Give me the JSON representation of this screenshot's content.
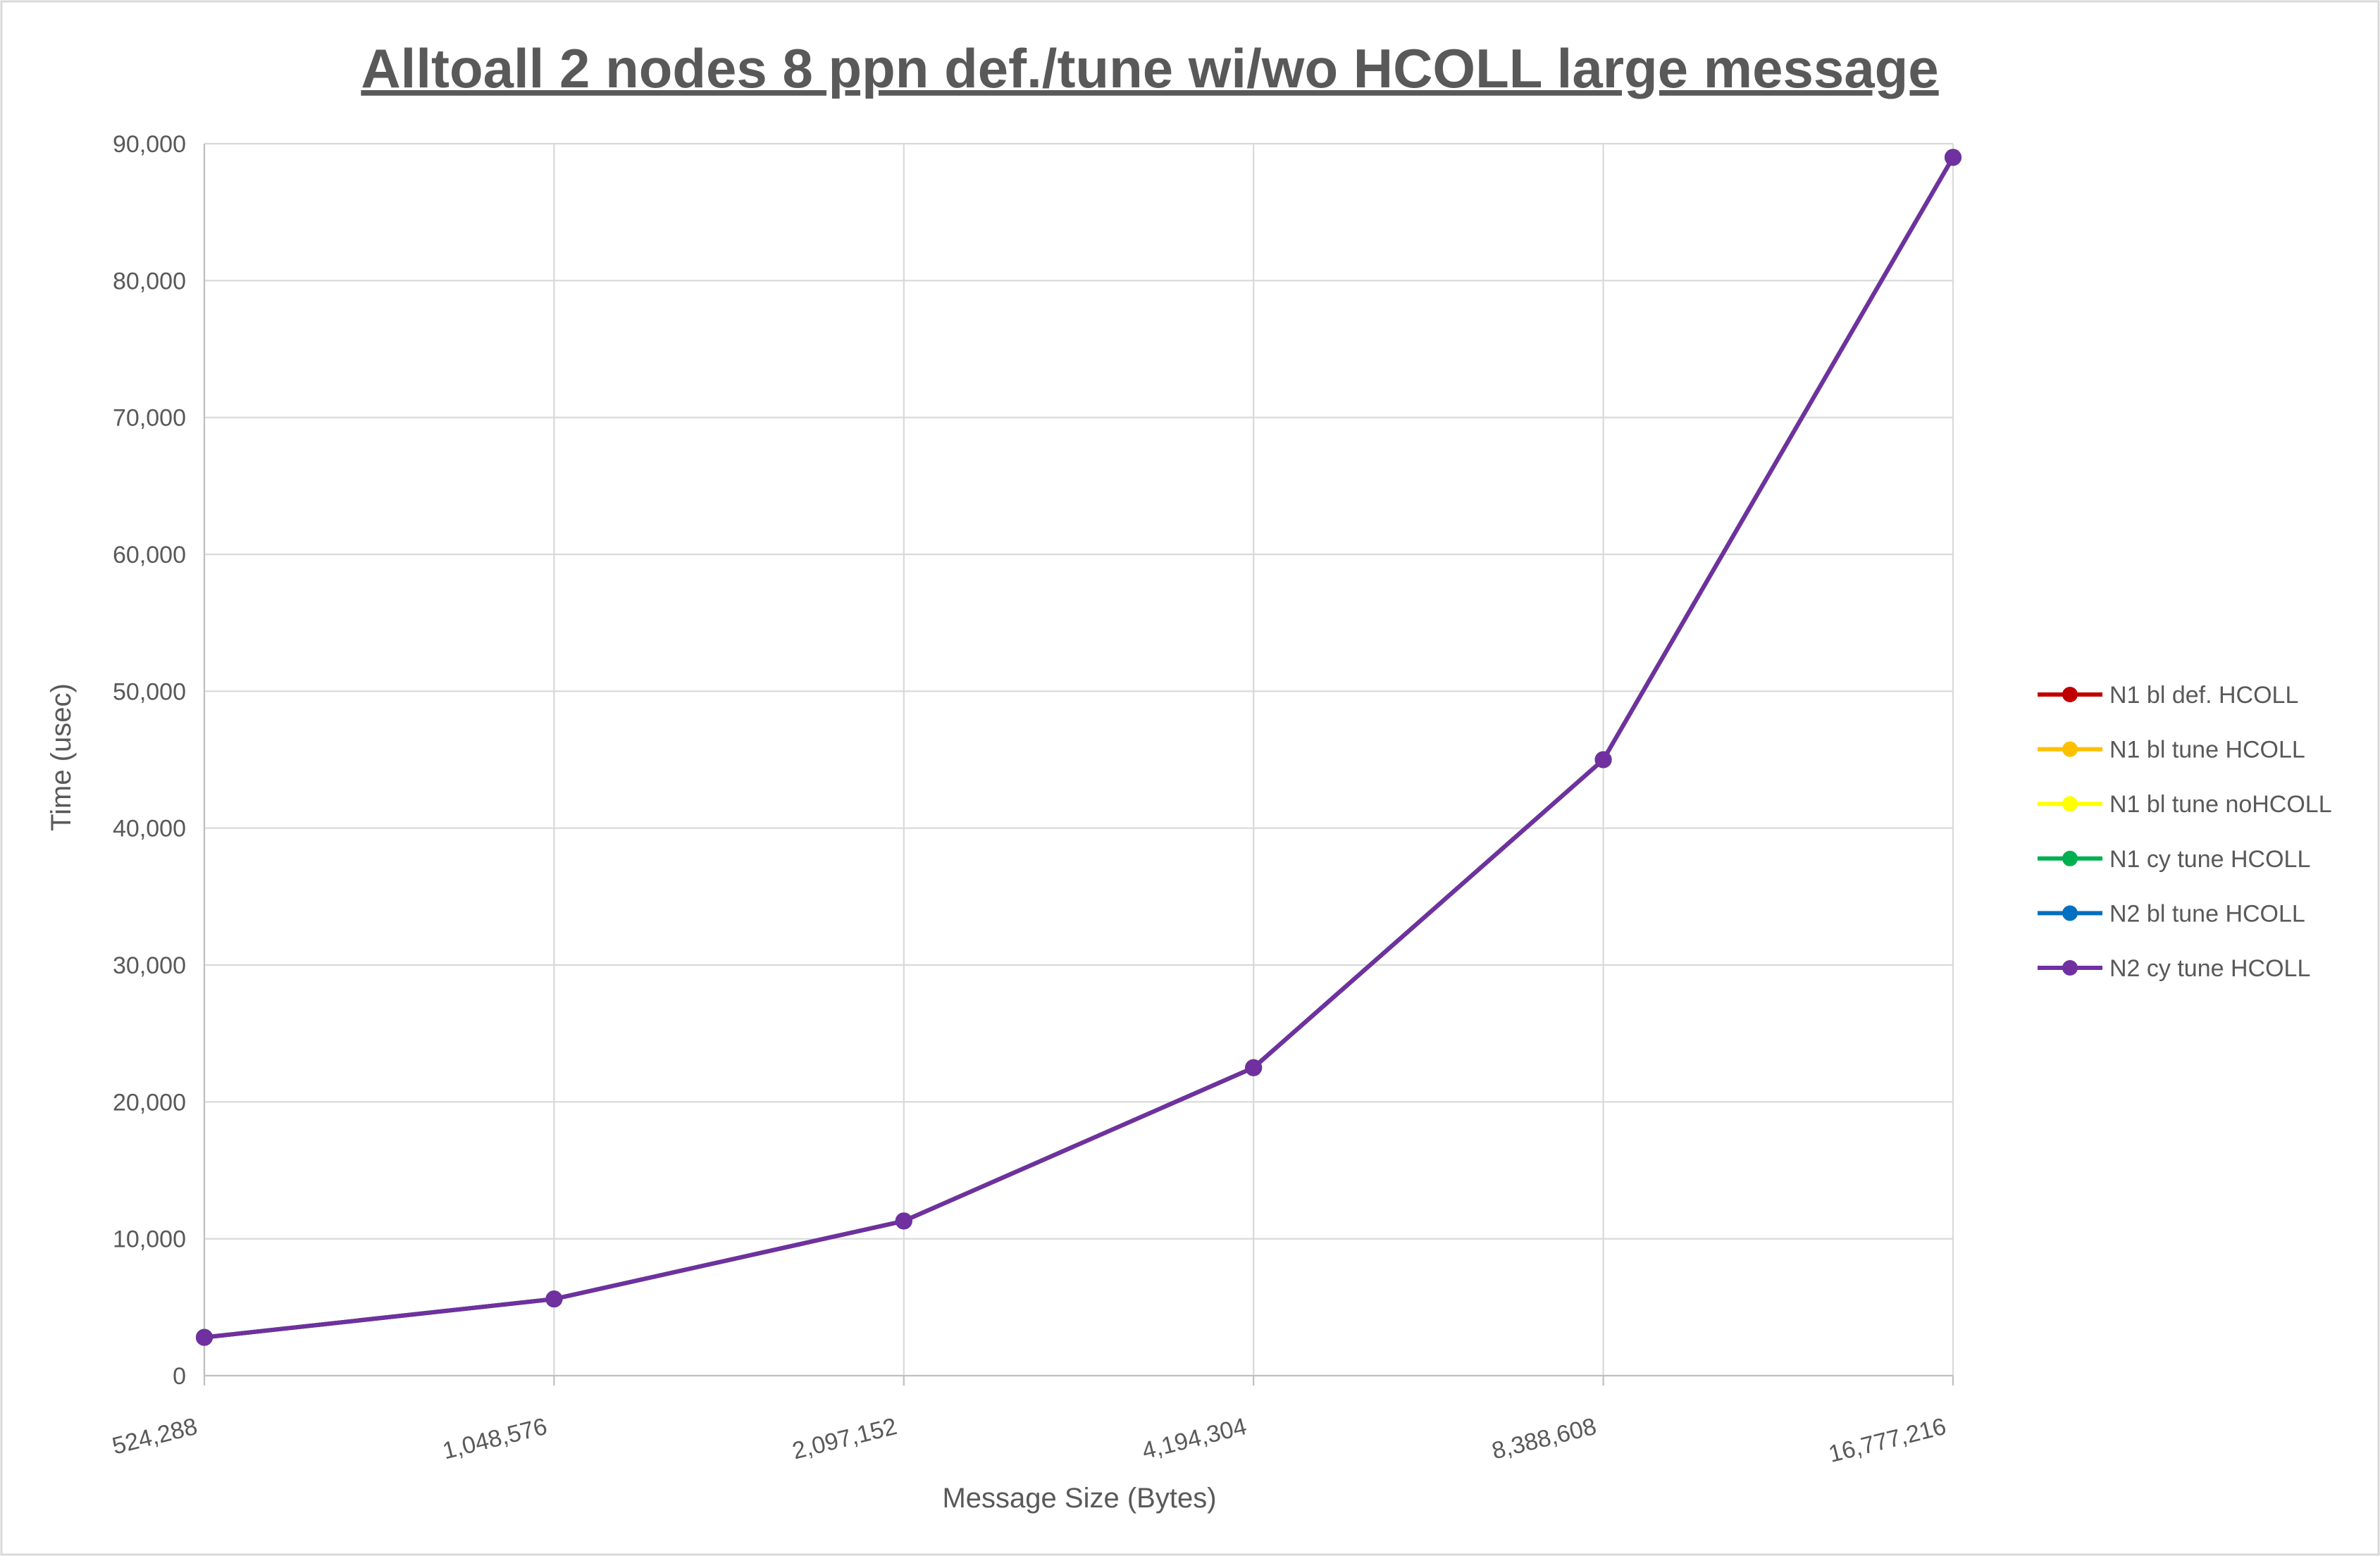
{
  "chart_data": {
    "type": "line",
    "title": "Alltoall 2 nodes 8 ppn def./tune wi/wo HCOLL large message",
    "xlabel": "Message Size (Bytes)",
    "ylabel": "Time (usec)",
    "categories": [
      "524,288",
      "1,048,576",
      "2,097,152",
      "4,194,304",
      "8,388,608",
      "16,777,216"
    ],
    "ylim": [
      0,
      90000
    ],
    "yticks": [
      0,
      10000,
      20000,
      30000,
      40000,
      50000,
      60000,
      70000,
      80000,
      90000
    ],
    "ytick_labels": [
      "0",
      "10,000",
      "20,000",
      "30,000",
      "40,000",
      "50,000",
      "60,000",
      "70,000",
      "80,000",
      "90,000"
    ],
    "grid": true,
    "legend_position": "right",
    "series": [
      {
        "name": "N1 bl def. HCOLL",
        "color": "#c00000",
        "values": [
          2800,
          5600,
          11300,
          22500,
          45000,
          89000
        ]
      },
      {
        "name": "N1 bl tune HCOLL",
        "color": "#ffc000",
        "values": [
          2800,
          5600,
          11300,
          22500,
          45000,
          89000
        ]
      },
      {
        "name": "N1 bl tune noHCOLL",
        "color": "#ffff00",
        "values": [
          2800,
          5600,
          11300,
          22500,
          45000,
          89000
        ]
      },
      {
        "name": "N1 cy tune HCOLL",
        "color": "#00b050",
        "values": [
          2800,
          5600,
          11300,
          22500,
          45000,
          89000
        ]
      },
      {
        "name": "N2 bl tune HCOLL",
        "color": "#0070c0",
        "values": [
          2800,
          5600,
          11300,
          22500,
          45000,
          89000
        ]
      },
      {
        "name": "N2 cy tune HCOLL",
        "color": "#7030a0",
        "values": [
          2800,
          5600,
          11300,
          22500,
          45000,
          89000
        ]
      }
    ]
  }
}
